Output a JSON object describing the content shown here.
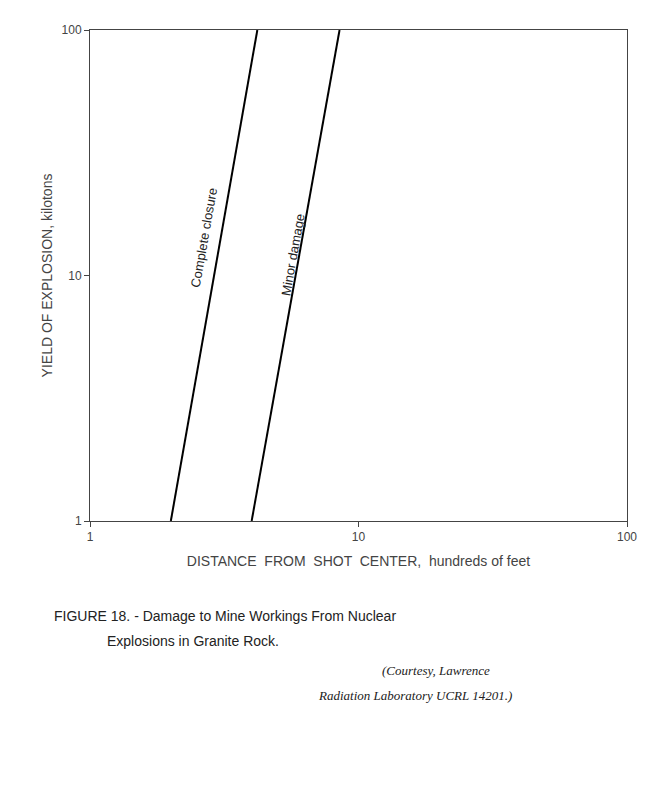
{
  "chart_data": {
    "type": "line",
    "log": true,
    "xlabel": "DISTANCE  FROM  SHOT  CENTER,  hundreds of feet",
    "ylabel": "YIELD OF EXPLOSION, kilotons",
    "xlim": [
      1,
      100
    ],
    "ylim": [
      1,
      100
    ],
    "xticks": [
      1,
      10,
      100
    ],
    "yticks": [
      1,
      10,
      100
    ],
    "grid": false,
    "series": [
      {
        "x": [
          2.0,
          4.2
        ],
        "values": [
          1.0,
          100.0
        ],
        "color": "#000000"
      },
      {
        "x": [
          4.0,
          8.5
        ],
        "values": [
          1.0,
          100.0
        ],
        "color": "#000000"
      }
    ],
    "annotations": [
      {
        "text": "Complete closure",
        "x": 2.9,
        "y": 14.0
      },
      {
        "text": "Minor damage",
        "x": 6.2,
        "y": 12.0
      }
    ],
    "caption": [
      "FIGURE 18. - Damage to Mine Workings From Nuclear",
      "Explosions in Granite Rock."
    ],
    "courtesy": [
      "(Courtesy, Lawrence",
      "Radiation Laboratory UCRL 14201.)"
    ]
  }
}
